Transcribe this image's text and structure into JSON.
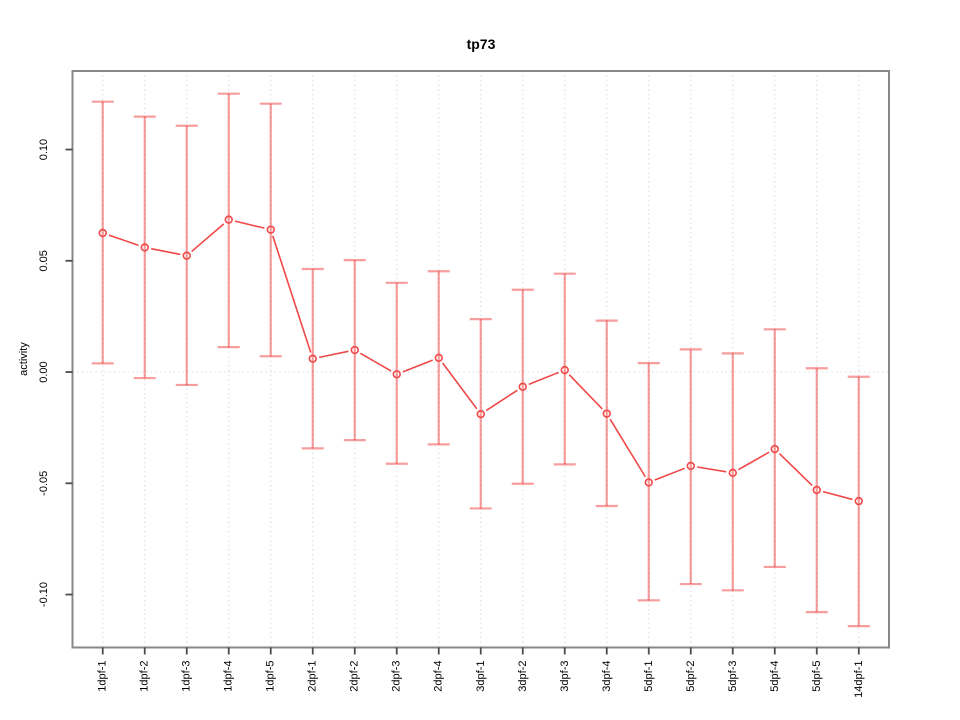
{
  "page": {
    "background_color": "#ffffff"
  },
  "chart_data": {
    "type": "line",
    "subtype": "means-with-error-bars",
    "title": "tp73",
    "xlabel": "",
    "ylabel": "activity",
    "legend_position": "none",
    "categories": [
      "1dpf-1",
      "1dpf-2",
      "1dpf-3",
      "1dpf-4",
      "1dpf-5",
      "2dpf-1",
      "2dpf-2",
      "2dpf-3",
      "2dpf-4",
      "3dpf-1",
      "3dpf-2",
      "3dpf-3",
      "3dpf-4",
      "5dpf-1",
      "5dpf-2",
      "5dpf-3",
      "5dpf-4",
      "5dpf-5",
      "14dpf-1"
    ],
    "series": [
      {
        "name": "tp73 activity",
        "values": [
          0.0625,
          0.056,
          0.0523,
          0.0685,
          0.064,
          0.006,
          0.0099,
          -0.001,
          0.0064,
          -0.0189,
          -0.0066,
          0.0009,
          -0.0187,
          -0.0496,
          -0.0422,
          -0.0453,
          -0.0346,
          -0.053,
          -0.058
        ],
        "lower": [
          0.0039,
          -0.0027,
          -0.0058,
          0.0112,
          0.0071,
          -0.0343,
          -0.0306,
          -0.0412,
          -0.0325,
          -0.0613,
          -0.0502,
          -0.0415,
          -0.0602,
          -0.1026,
          -0.0953,
          -0.0981,
          -0.0876,
          -0.1079,
          -0.1142
        ],
        "upper": [
          0.1215,
          0.1148,
          0.1107,
          0.1251,
          0.1206,
          0.0463,
          0.0503,
          0.0401,
          0.0453,
          0.0238,
          0.037,
          0.0442,
          0.0231,
          0.004,
          0.0102,
          0.0084,
          0.0192,
          0.0017,
          -0.0021
        ]
      }
    ],
    "yticks": [
      {
        "value": 0.1,
        "label": "0.10"
      },
      {
        "value": 0.05,
        "label": "0.05"
      },
      {
        "value": 0.0,
        "label": "0.00"
      },
      {
        "value": -0.05,
        "label": "-0.05"
      },
      {
        "value": -0.1,
        "label": "-0.10"
      }
    ],
    "ylim": [
      -0.1238,
      0.1353
    ],
    "xlim": [
      0.28,
      19.72
    ],
    "grid": {
      "vertical_dotted_per_category": true,
      "horizontal_dotted_zero_line": true
    },
    "colors": {
      "point": "#f04848",
      "line": "#f04848",
      "error_bar": "rgba(240,60,60,0.5)",
      "grid": "#d9d9d9",
      "box": "#878787",
      "tick": "#4d4d4d",
      "text": "#000000"
    }
  }
}
